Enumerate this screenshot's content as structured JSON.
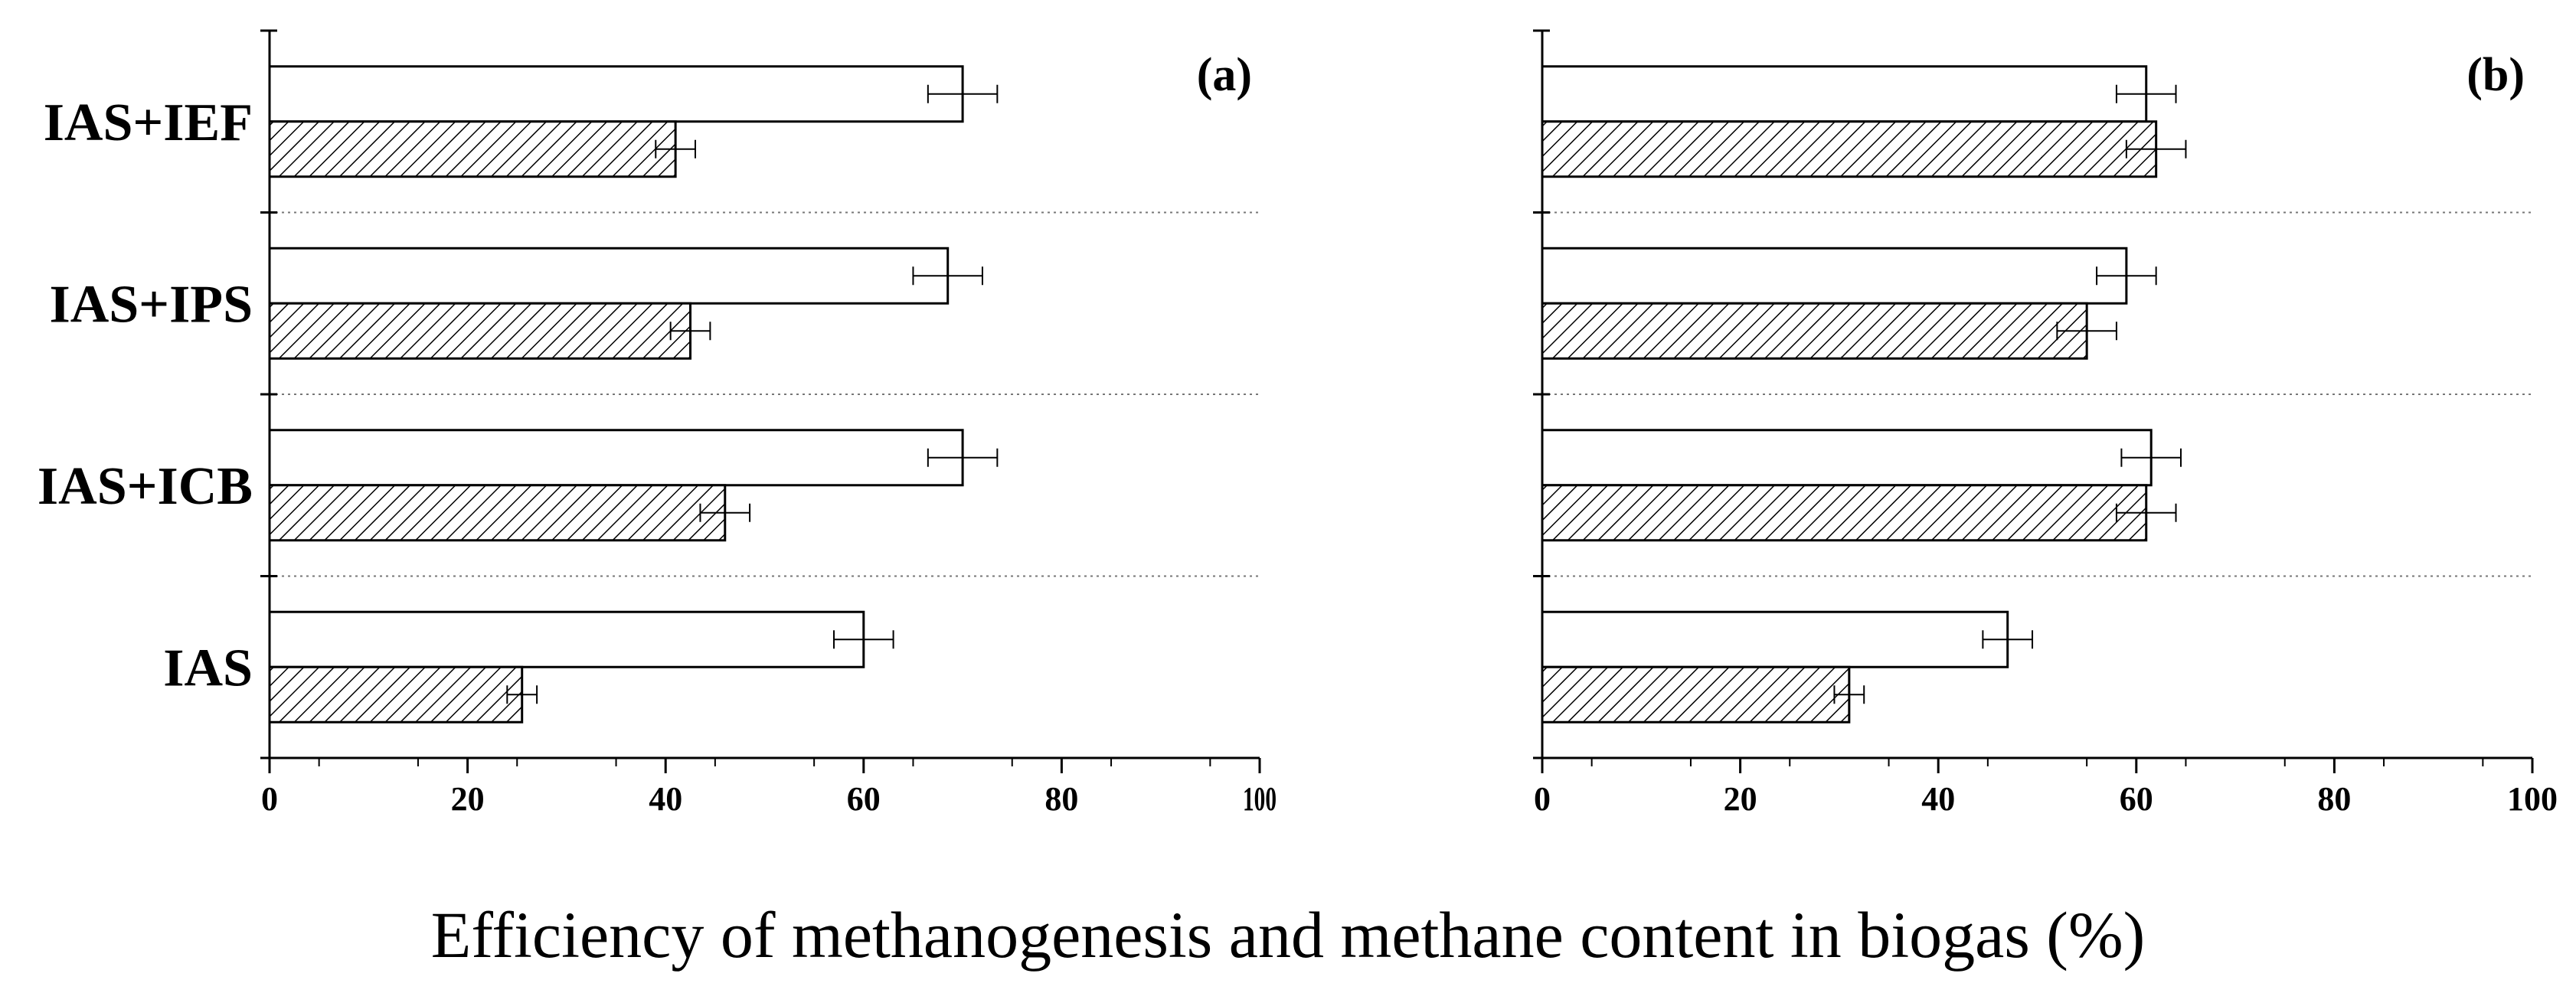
{
  "chart_data": {
    "type": "bar",
    "orientation": "horizontal",
    "xlabel": "Efficiency of methanogenesis and methane content in biogas (%)",
    "xlim": [
      0,
      100
    ],
    "xticks": [
      "0",
      "20",
      "40",
      "60",
      "80",
      "100"
    ],
    "categories": [
      "IAS+IEF",
      "IAS+IPS",
      "IAS+ICB",
      "IAS"
    ],
    "grid": "dotted separators between categories",
    "panels": [
      {
        "label": "(a)",
        "series": [
          {
            "style": "open",
            "values": [
              70,
              68.5,
              70,
              60
            ],
            "errors": [
              3.5,
              3.5,
              3.5,
              3
            ]
          },
          {
            "style": "hatched",
            "values": [
              41,
              42.5,
              46,
              25.5
            ],
            "errors": [
              2,
              2,
              2.5,
              1.5
            ]
          }
        ]
      },
      {
        "label": "(b)",
        "series": [
          {
            "style": "open",
            "values": [
              61,
              59,
              61.5,
              47
            ],
            "errors": [
              3,
              3,
              3,
              2.5
            ]
          },
          {
            "style": "hatched",
            "values": [
              62,
              55,
              61,
              31
            ],
            "errors": [
              3,
              3,
              3,
              1.5
            ]
          }
        ]
      }
    ]
  }
}
